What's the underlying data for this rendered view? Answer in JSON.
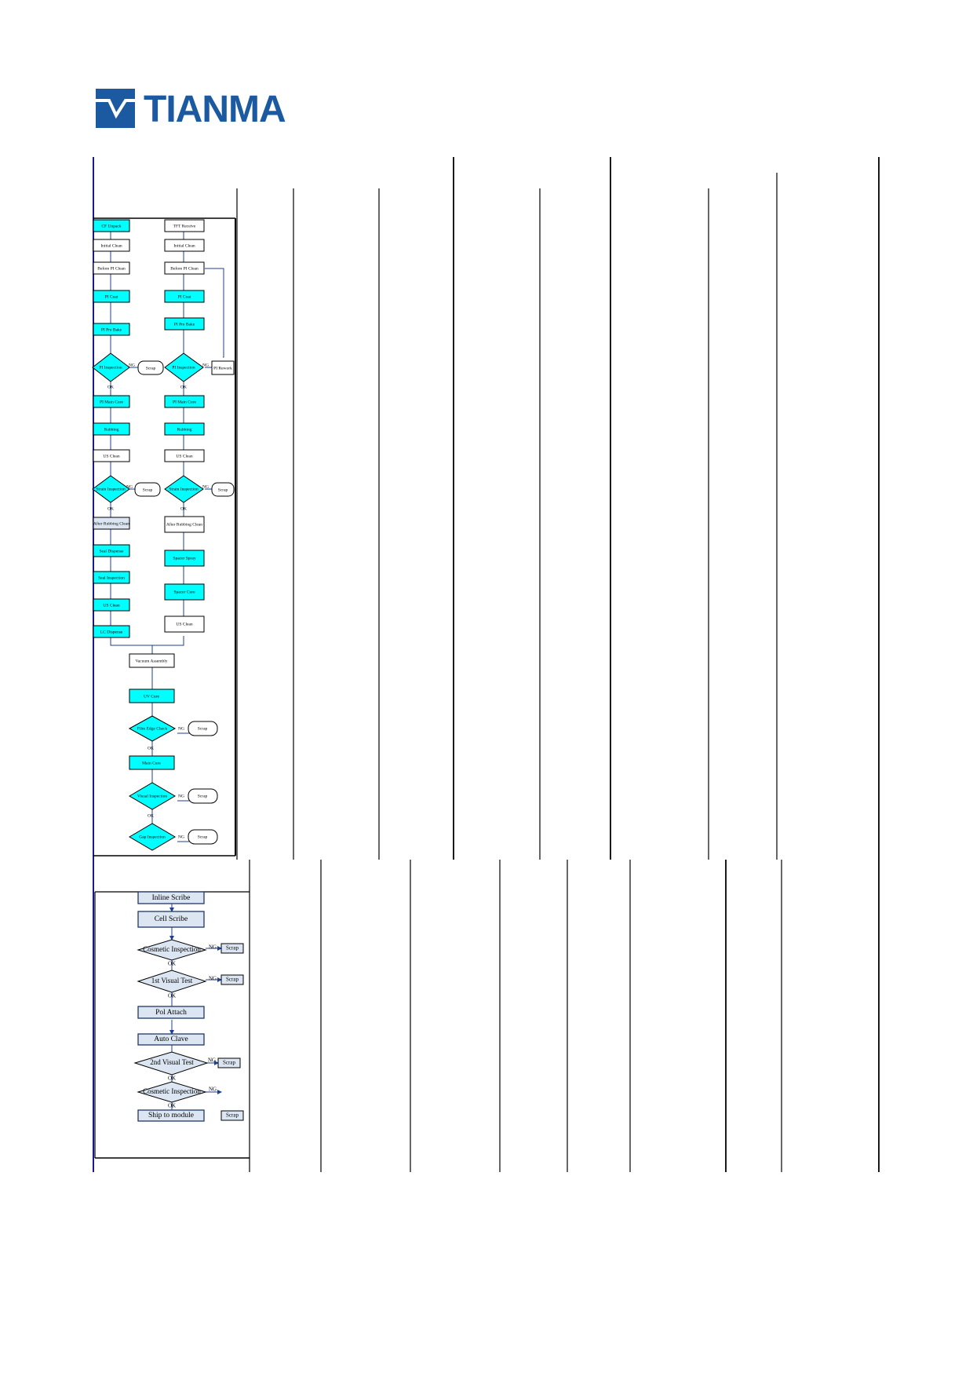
{
  "brand": {
    "name": "TIANMA",
    "color": "#1b5aa0"
  },
  "colors": {
    "process_fill": "#00ffff",
    "stage_fill": "#dce6f2",
    "stage_border": "#1f3864",
    "connector": "#1f3f8f",
    "frame": "#000000",
    "accent_line": "#1a1a8c"
  },
  "flow1": {
    "cf_column": {
      "cf_unpack": "CF Unpack",
      "initial_clean": "Initial Clean",
      "before_pi_clean": "Before PI Clean",
      "pi_coat": "PI Coat",
      "pi_pre_bake": "PI Pre Bake",
      "pi_inspection": "PI Inspection",
      "pi_main_cure": "PI Main Cure",
      "rubbing": "Rubbing",
      "us_clean_1": "US Clean",
      "strain_inspection": "Strain Inspection",
      "after_rubbing_clean": "After Rubbing Clean",
      "seal_dispense": "Seal Dispense",
      "seal_inspection": "Seal Inspection",
      "us_clean_2": "US Clean",
      "lc_dispense": "LC Dispense"
    },
    "tft_column": {
      "tft_receive": "TFT Receive",
      "initial_clean": "Initial Clean",
      "before_pi_clean": "Before PI Clean",
      "pi_coat": "PI Coat",
      "pi_pre_bake": "PI Pre Bake",
      "pi_inspection": "PI Inspection",
      "pi_rework": "PI Rework",
      "pi_main_cure": "PI Main Cure",
      "rubbing": "Rubbing",
      "us_clean_1": "US Clean",
      "strain_inspection": "Strain Inspection",
      "after_rubbing_clean": "After Rubbing Clean",
      "spacer_spray": "Spacer Spray",
      "spacer_cure": "Spacer Cure",
      "us_clean_2": "US Clean"
    },
    "merged": {
      "vacuum_assembly": "Vacuum Assembly",
      "uv_cure": "UV Cure",
      "film_edge_check": "Film Edge Check",
      "main_cure": "Main Cure",
      "visual_inspection": "Visual Inspection",
      "gap_inspection": "Gap Inspection"
    },
    "scrap": "Scrap",
    "ng": "NG",
    "ok": "OK"
  },
  "flow2": {
    "inline_scribe": "Inline Scribe",
    "cell_scribe": "Cell Scribe",
    "cosmetic_inspection_1": "Cosmetic Inspection",
    "first_visual_test": "1st Visual Test",
    "pol_attach": "Pol Attach",
    "auto_clave": "Auto Clave",
    "second_visual_test": "2nd Visual Test",
    "cosmetic_inspection_2": "Cosmetic Inspection",
    "ship_to_module": "Ship to module",
    "scrap": "Scrap",
    "ng": "NG",
    "ok": "OK"
  }
}
